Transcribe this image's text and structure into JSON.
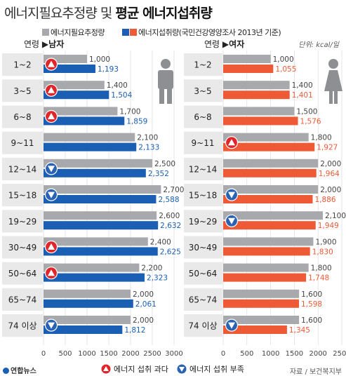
{
  "title": {
    "part1": "에너지필요추정량 및",
    "part2": "평균 에너지섭취량"
  },
  "legend": {
    "required": "에너지필요추정량",
    "intake": "에너지섭취량(국민건강영양조사 2013년 기준)"
  },
  "unit": "단위: kcal/일",
  "panel_header": {
    "age": "연령",
    "male": "남자",
    "female": "여자"
  },
  "footer": {
    "logo": "연합뉴스",
    "over": "에너지 섭취 과다",
    "under": "에너지 섭취 부족",
    "source": "자료 / 보건복지부"
  },
  "colors": {
    "required": "#a7a9ac",
    "male_intake": "#1a5fb4",
    "female_intake": "#ee5a36",
    "over_marker": "#e0262b",
    "under_marker": "#2a63b3"
  },
  "icons": {
    "male": "male-figure-icon",
    "female": "female-figure-icon",
    "over": "triangle-up-icon",
    "under": "triangle-down-icon"
  },
  "chart_data": [
    {
      "type": "bar",
      "panel": "남자",
      "categories": [
        "1~2",
        "3~5",
        "6~8",
        "9~11",
        "12~14",
        "15~18",
        "19~29",
        "30~49",
        "50~64",
        "65~74",
        "74 이상"
      ],
      "series": [
        {
          "name": "에너지필요추정량",
          "values": [
            1000,
            1400,
            1700,
            2100,
            2500,
            2700,
            2600,
            2400,
            2200,
            2000,
            2000
          ]
        },
        {
          "name": "에너지섭취량(국민건강영양조사 2013년 기준)",
          "values": [
            1193,
            1504,
            1859,
            2133,
            2352,
            2588,
            2632,
            2625,
            2323,
            2061,
            1812
          ]
        }
      ],
      "markers": [
        "over",
        "over",
        "over",
        "",
        "under",
        "under",
        "",
        "over",
        "over",
        "",
        "under"
      ],
      "xlim": [
        0,
        3000
      ],
      "xticks": [
        0,
        500,
        1000,
        1500,
        2000,
        2500,
        3000
      ]
    },
    {
      "type": "bar",
      "panel": "여자",
      "categories": [
        "1~2",
        "3~5",
        "6~8",
        "9~11",
        "12~14",
        "15~18",
        "19~29",
        "30~49",
        "50~64",
        "65~74",
        "74 이상"
      ],
      "series": [
        {
          "name": "에너지필요추정량",
          "values": [
            1000,
            1400,
            1500,
            1800,
            2000,
            2000,
            2100,
            1900,
            1800,
            1600,
            1600
          ]
        },
        {
          "name": "에너지섭취량(국민건강영양조사 2013년 기준)",
          "values": [
            1055,
            1401,
            1576,
            1927,
            1964,
            1886,
            1949,
            1830,
            1748,
            1598,
            1345
          ]
        }
      ],
      "markers": [
        "",
        "",
        "",
        "over",
        "",
        "under",
        "under",
        "",
        "",
        "",
        "under"
      ],
      "xlim": [
        0,
        2500
      ],
      "xticks": [
        0,
        500,
        1000,
        1500,
        2000,
        2500
      ]
    }
  ]
}
